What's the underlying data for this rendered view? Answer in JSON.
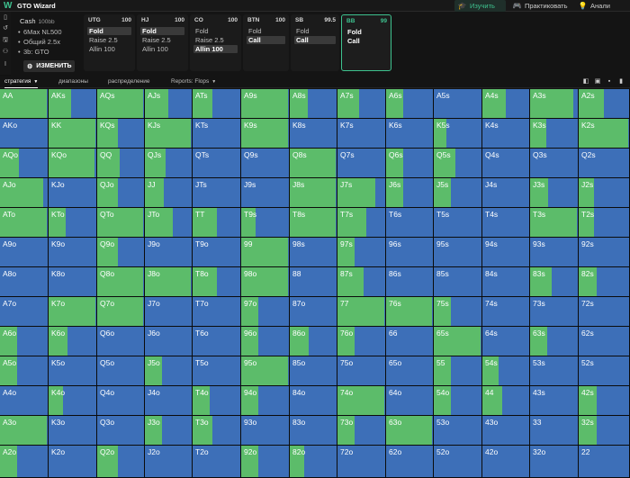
{
  "app": {
    "title": "GTO Wizard",
    "logo": "W"
  },
  "nav": [
    {
      "label": "Изучить",
      "icon": "grad-cap-icon",
      "glyph": "🎓"
    },
    {
      "label": "Практиковать",
      "icon": "gamepad-icon",
      "glyph": "🎮"
    },
    {
      "label": "Анали",
      "icon": "lightbulb-icon",
      "glyph": "💡"
    }
  ],
  "left_icons": [
    {
      "icon": "bookmark-icon",
      "glyph": "▯"
    },
    {
      "icon": "reset-icon",
      "glyph": "↺"
    },
    {
      "icon": "save-icon",
      "glyph": "🖫"
    },
    {
      "icon": "users-icon",
      "glyph": "⚇"
    },
    {
      "icon": "text-cursor-icon",
      "glyph": "I"
    }
  ],
  "game_info": {
    "title": "Cash",
    "stack": "100bb",
    "lines": [
      "6Max NL500",
      "Общий 2.5x",
      "3b: GTO"
    ],
    "change_button": "ИЗМЕНИТЬ"
  },
  "positions": [
    {
      "name": "UTG",
      "stack": "100",
      "actions": [
        {
          "label": "Fold",
          "selected": true
        },
        {
          "label": "Raise 2.5",
          "selected": false
        },
        {
          "label": "Allin 100",
          "selected": false
        }
      ]
    },
    {
      "name": "HJ",
      "stack": "100",
      "actions": [
        {
          "label": "Fold",
          "selected": true
        },
        {
          "label": "Raise 2.5",
          "selected": false
        },
        {
          "label": "Allin 100",
          "selected": false
        }
      ]
    },
    {
      "name": "CO",
      "stack": "100",
      "actions": [
        {
          "label": "Fold",
          "selected": false
        },
        {
          "label": "Raise 2.5",
          "selected": false
        },
        {
          "label": "Allin 100",
          "selected": true
        }
      ]
    },
    {
      "name": "BTN",
      "stack": "100",
      "actions": [
        {
          "label": "Fold",
          "selected": false
        },
        {
          "label": "Call",
          "selected": true
        }
      ]
    },
    {
      "name": "SB",
      "stack": "99.5",
      "actions": [
        {
          "label": "Fold",
          "selected": false
        },
        {
          "label": "Call",
          "selected": true
        }
      ]
    },
    {
      "name": "BB",
      "stack": "99",
      "active": true,
      "actions": [
        {
          "label": "Fold",
          "selected": false
        },
        {
          "label": "Call",
          "selected": false
        }
      ]
    }
  ],
  "tabs": [
    {
      "label": "стратегия",
      "active": true,
      "caret": true
    },
    {
      "label": "диапазоны",
      "active": false,
      "caret": false
    },
    {
      "label": "распределение",
      "active": false,
      "caret": false
    },
    {
      "label": "Reports: Flops",
      "active": false,
      "caret": true
    }
  ],
  "view_buttons": [
    "layout-single-icon",
    "layout-split-icon",
    "layout-grid-icon",
    "layout-full-icon"
  ],
  "colors": {
    "call": "#5cbc6a",
    "fold": "#3d6fb8",
    "accent": "#3ec28f"
  },
  "matrix": {
    "legend": {
      "green": "Call",
      "blue": "Fold"
    },
    "rows": [
      [
        {
          "hand": "AA",
          "call": 0.98
        },
        {
          "hand": "AKs",
          "call": 0.48
        },
        {
          "hand": "AQs",
          "call": 0.98
        },
        {
          "hand": "AJs",
          "call": 0.5
        },
        {
          "hand": "ATs",
          "call": 0.42
        },
        {
          "hand": "A9s",
          "call": 0.98
        },
        {
          "hand": "A8s",
          "call": 0.38
        },
        {
          "hand": "A7s",
          "call": 0.45
        },
        {
          "hand": "A6s",
          "call": 0.37
        },
        {
          "hand": "A5s",
          "call": 0
        },
        {
          "hand": "A4s",
          "call": 0.5
        },
        {
          "hand": "A3s",
          "call": 0.9
        },
        {
          "hand": "A2s",
          "call": 0.5
        }
      ],
      [
        {
          "hand": "AKo",
          "call": 0
        },
        {
          "hand": "KK",
          "call": 0.98
        },
        {
          "hand": "KQs",
          "call": 0.45
        },
        {
          "hand": "KJs",
          "call": 0.98
        },
        {
          "hand": "KTs",
          "call": 0
        },
        {
          "hand": "K9s",
          "call": 0.98
        },
        {
          "hand": "K8s",
          "call": 0
        },
        {
          "hand": "K7s",
          "call": 0
        },
        {
          "hand": "K6s",
          "call": 0
        },
        {
          "hand": "K5s",
          "call": 0.26
        },
        {
          "hand": "K4s",
          "call": 0
        },
        {
          "hand": "K3s",
          "call": 0.34
        },
        {
          "hand": "K2s",
          "call": 0.98
        }
      ],
      [
        {
          "hand": "AQo",
          "call": 0.4
        },
        {
          "hand": "KQo",
          "call": 0.96
        },
        {
          "hand": "QQ",
          "call": 0.48
        },
        {
          "hand": "QJs",
          "call": 0.45
        },
        {
          "hand": "QTs",
          "call": 0
        },
        {
          "hand": "Q9s",
          "call": 0
        },
        {
          "hand": "Q8s",
          "call": 0.98
        },
        {
          "hand": "Q7s",
          "call": 0
        },
        {
          "hand": "Q6s",
          "call": 0.36
        },
        {
          "hand": "Q5s",
          "call": 0.46
        },
        {
          "hand": "Q4s",
          "call": 0
        },
        {
          "hand": "Q3s",
          "call": 0
        },
        {
          "hand": "Q2s",
          "call": 0
        }
      ],
      [
        {
          "hand": "AJo",
          "call": 0.91
        },
        {
          "hand": "KJo",
          "call": 0
        },
        {
          "hand": "QJo",
          "call": 0.45
        },
        {
          "hand": "JJ",
          "call": 0.4
        },
        {
          "hand": "JTs",
          "call": 0
        },
        {
          "hand": "J9s",
          "call": 0
        },
        {
          "hand": "J8s",
          "call": 0.98
        },
        {
          "hand": "J7s",
          "call": 0.8
        },
        {
          "hand": "J6s",
          "call": 0.36
        },
        {
          "hand": "J5s",
          "call": 0.36
        },
        {
          "hand": "J4s",
          "call": 0
        },
        {
          "hand": "J3s",
          "call": 0.38
        },
        {
          "hand": "J2s",
          "call": 0.3
        }
      ],
      [
        {
          "hand": "ATo",
          "call": 0.98
        },
        {
          "hand": "KTo",
          "call": 0.36
        },
        {
          "hand": "QTo",
          "call": 0.98
        },
        {
          "hand": "JTo",
          "call": 0.6
        },
        {
          "hand": "TT",
          "call": 0.5
        },
        {
          "hand": "T9s",
          "call": 0.3
        },
        {
          "hand": "T8s",
          "call": 0.98
        },
        {
          "hand": "T7s",
          "call": 0.6
        },
        {
          "hand": "T6s",
          "call": 0
        },
        {
          "hand": "T5s",
          "call": 0
        },
        {
          "hand": "T4s",
          "call": 0
        },
        {
          "hand": "T3s",
          "call": 0.98
        },
        {
          "hand": "T2s",
          "call": 0.3
        }
      ],
      [
        {
          "hand": "A9o",
          "call": 0
        },
        {
          "hand": "K9o",
          "call": 0
        },
        {
          "hand": "Q9o",
          "call": 0.45
        },
        {
          "hand": "J9o",
          "call": 0
        },
        {
          "hand": "T9o",
          "call": 0
        },
        {
          "hand": "99",
          "call": 0.98
        },
        {
          "hand": "98s",
          "call": 0
        },
        {
          "hand": "97s",
          "call": 0.35
        },
        {
          "hand": "96s",
          "call": 0
        },
        {
          "hand": "95s",
          "call": 0
        },
        {
          "hand": "94s",
          "call": 0
        },
        {
          "hand": "93s",
          "call": 0
        },
        {
          "hand": "92s",
          "call": 0
        }
      ],
      [
        {
          "hand": "A8o",
          "call": 0
        },
        {
          "hand": "K8o",
          "call": 0
        },
        {
          "hand": "Q8o",
          "call": 0.98
        },
        {
          "hand": "J8o",
          "call": 0.98
        },
        {
          "hand": "T8o",
          "call": 0.5
        },
        {
          "hand": "98o",
          "call": 0.98
        },
        {
          "hand": "88",
          "call": 0
        },
        {
          "hand": "87s",
          "call": 0.55
        },
        {
          "hand": "86s",
          "call": 0
        },
        {
          "hand": "85s",
          "call": 0
        },
        {
          "hand": "84s",
          "call": 0
        },
        {
          "hand": "83s",
          "call": 0.45
        },
        {
          "hand": "82s",
          "call": 0.35
        }
      ],
      [
        {
          "hand": "A7o",
          "call": 0
        },
        {
          "hand": "K7o",
          "call": 0.98
        },
        {
          "hand": "Q7o",
          "call": 0.98
        },
        {
          "hand": "J7o",
          "call": 0
        },
        {
          "hand": "T7o",
          "call": 0
        },
        {
          "hand": "97o",
          "call": 0.35
        },
        {
          "hand": "87o",
          "call": 0
        },
        {
          "hand": "77",
          "call": 0.98
        },
        {
          "hand": "76s",
          "call": 0.98
        },
        {
          "hand": "75s",
          "call": 0.35
        },
        {
          "hand": "74s",
          "call": 0
        },
        {
          "hand": "73s",
          "call": 0
        },
        {
          "hand": "72s",
          "call": 0
        }
      ],
      [
        {
          "hand": "A6o",
          "call": 0.36
        },
        {
          "hand": "K6o",
          "call": 0.4
        },
        {
          "hand": "Q6o",
          "call": 0
        },
        {
          "hand": "J6o",
          "call": 0
        },
        {
          "hand": "T6o",
          "call": 0
        },
        {
          "hand": "96o",
          "call": 0.36
        },
        {
          "hand": "86o",
          "call": 0.4
        },
        {
          "hand": "76o",
          "call": 0.36
        },
        {
          "hand": "66",
          "call": 0
        },
        {
          "hand": "65s",
          "call": 0.98
        },
        {
          "hand": "64s",
          "call": 0
        },
        {
          "hand": "63s",
          "call": 0.35
        },
        {
          "hand": "62s",
          "call": 0
        }
      ],
      [
        {
          "hand": "A5o",
          "call": 0.36
        },
        {
          "hand": "K5o",
          "call": 0
        },
        {
          "hand": "Q5o",
          "call": 0
        },
        {
          "hand": "J5o",
          "call": 0.36
        },
        {
          "hand": "T5o",
          "call": 0
        },
        {
          "hand": "95o",
          "call": 0.98
        },
        {
          "hand": "85o",
          "call": 0
        },
        {
          "hand": "75o",
          "call": 0
        },
        {
          "hand": "65o",
          "call": 0
        },
        {
          "hand": "55",
          "call": 0.36
        },
        {
          "hand": "54s",
          "call": 0.35
        },
        {
          "hand": "53s",
          "call": 0
        },
        {
          "hand": "52s",
          "call": 0
        }
      ],
      [
        {
          "hand": "A4o",
          "call": 0
        },
        {
          "hand": "K4o",
          "call": 0.3
        },
        {
          "hand": "Q4o",
          "call": 0
        },
        {
          "hand": "J4o",
          "call": 0
        },
        {
          "hand": "T4o",
          "call": 0.36
        },
        {
          "hand": "94o",
          "call": 0.36
        },
        {
          "hand": "84o",
          "call": 0
        },
        {
          "hand": "74o",
          "call": 0.98
        },
        {
          "hand": "64o",
          "call": 0
        },
        {
          "hand": "54o",
          "call": 0.36
        },
        {
          "hand": "44",
          "call": 0.43
        },
        {
          "hand": "43s",
          "call": 0
        },
        {
          "hand": "42s",
          "call": 0.36
        }
      ],
      [
        {
          "hand": "A3o",
          "call": 0.98
        },
        {
          "hand": "K3o",
          "call": 0
        },
        {
          "hand": "Q3o",
          "call": 0
        },
        {
          "hand": "J3o",
          "call": 0.36
        },
        {
          "hand": "T3o",
          "call": 0.42
        },
        {
          "hand": "93o",
          "call": 0
        },
        {
          "hand": "83o",
          "call": 0
        },
        {
          "hand": "73o",
          "call": 0.36
        },
        {
          "hand": "63o",
          "call": 0.98
        },
        {
          "hand": "53o",
          "call": 0
        },
        {
          "hand": "43o",
          "call": 0
        },
        {
          "hand": "33",
          "call": 0
        },
        {
          "hand": "32s",
          "call": 0.36
        }
      ],
      [
        {
          "hand": "A2o",
          "call": 0.36
        },
        {
          "hand": "K2o",
          "call": 0
        },
        {
          "hand": "Q2o",
          "call": 0.45
        },
        {
          "hand": "J2o",
          "call": 0
        },
        {
          "hand": "T2o",
          "call": 0
        },
        {
          "hand": "92o",
          "call": 0.36
        },
        {
          "hand": "82o",
          "call": 0.3
        },
        {
          "hand": "72o",
          "call": 0
        },
        {
          "hand": "62o",
          "call": 0
        },
        {
          "hand": "52o",
          "call": 0
        },
        {
          "hand": "42o",
          "call": 0
        },
        {
          "hand": "32o",
          "call": 0
        },
        {
          "hand": "22",
          "call": 0
        }
      ]
    ]
  }
}
